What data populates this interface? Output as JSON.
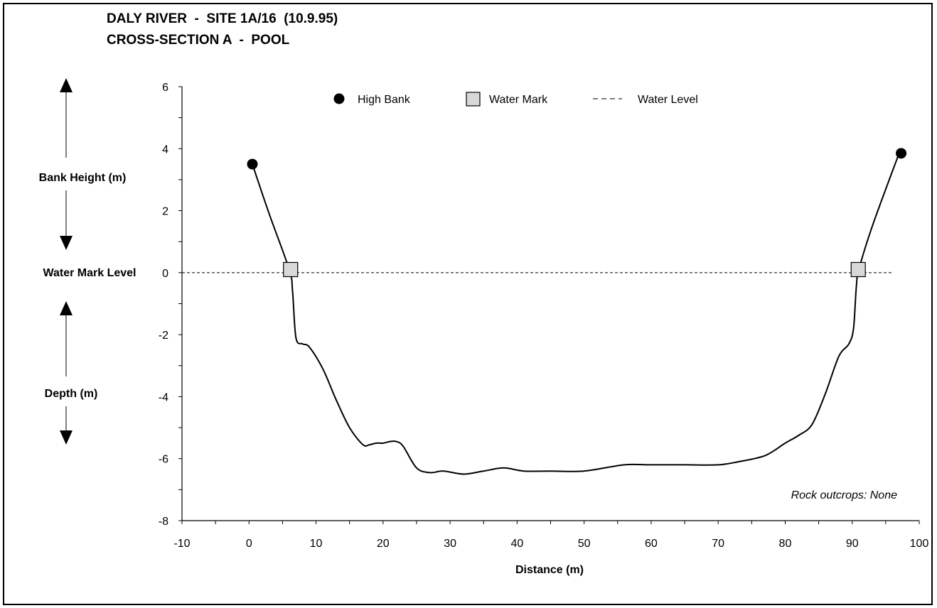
{
  "title_line1": "DALY RIVER  -  SITE 1A/16  (10.9.95)",
  "title_line2": "CROSS-SECTION A  -  POOL",
  "side_labels": {
    "bank_height": "Bank Height (m)",
    "water_mark_level": "Water Mark Level",
    "depth": "Depth (m)"
  },
  "annotation": "Rock outcrops: None",
  "chart_data": {
    "type": "line",
    "xlabel": "Distance (m)",
    "ylabel": "",
    "xlim": [
      -10,
      100
    ],
    "ylim": [
      -8,
      6
    ],
    "x_ticks": [
      "-10",
      "0",
      "10",
      "20",
      "30",
      "40",
      "50",
      "60",
      "70",
      "80",
      "90",
      "100"
    ],
    "y_ticks": [
      "6",
      "4",
      "2",
      "0",
      "-2",
      "-4",
      "-6",
      "-8"
    ],
    "legend": [
      {
        "name": "High Bank",
        "marker": "circle"
      },
      {
        "name": "Water Mark",
        "marker": "square"
      },
      {
        "name": "Water Level",
        "marker": "dashed-line"
      }
    ],
    "legend_placement": "top",
    "grid": false,
    "series": [
      {
        "name": "Profile",
        "x": [
          0.5,
          3,
          6,
          6.5,
          7,
          8,
          9,
          11,
          13,
          15,
          17,
          18,
          19,
          20,
          21,
          22,
          23,
          25,
          27,
          29,
          32,
          35,
          38,
          41,
          45,
          50,
          56,
          60,
          65,
          70,
          73,
          77,
          80,
          82,
          84,
          86,
          88,
          89.5,
          90.2,
          90.6,
          91,
          93,
          97
        ],
        "y": [
          3.5,
          1.9,
          0.1,
          -0.6,
          -2.1,
          -2.3,
          -2.4,
          -3.1,
          -4.1,
          -5.0,
          -5.55,
          -5.55,
          -5.5,
          -5.5,
          -5.45,
          -5.45,
          -5.6,
          -6.3,
          -6.45,
          -6.4,
          -6.5,
          -6.4,
          -6.3,
          -6.4,
          -6.4,
          -6.4,
          -6.2,
          -6.2,
          -6.2,
          -6.2,
          -6.1,
          -5.9,
          -5.5,
          -5.25,
          -4.9,
          -3.9,
          -2.7,
          -2.3,
          -1.8,
          -0.5,
          0.1,
          1.5,
          3.85
        ]
      },
      {
        "name": "High Bank",
        "x": [
          0.5,
          97.3
        ],
        "y": [
          3.5,
          3.85
        ]
      },
      {
        "name": "Water Mark",
        "x": [
          6.2,
          90.9
        ],
        "y": [
          0.1,
          0.1
        ]
      },
      {
        "name": "Water Level",
        "x": [
          -10,
          96
        ],
        "y": [
          0,
          0
        ]
      }
    ]
  }
}
